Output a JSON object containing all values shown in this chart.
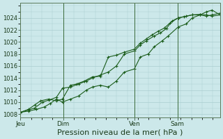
{
  "background_color": "#cce8ea",
  "grid_color": "#aacdd0",
  "line_color": "#1a5c1a",
  "marker_color": "#1a5c1a",
  "xlabel": "Pression niveau de la mer( hPa )",
  "xlabel_fontsize": 8,
  "ylim": [
    1007.5,
    1026.5
  ],
  "yticks": [
    1008,
    1010,
    1012,
    1014,
    1016,
    1018,
    1020,
    1022,
    1024
  ],
  "xtick_labels": [
    "Jeu",
    "Dim",
    "Ven",
    "Sam"
  ],
  "xtick_positions": [
    0.0,
    0.214,
    0.571,
    0.786
  ],
  "vline_positions": [
    0.0,
    0.214,
    0.571,
    0.786
  ],
  "series1_x": [
    0.0,
    0.04,
    0.07,
    0.1,
    0.14,
    0.18,
    0.21,
    0.25,
    0.28,
    0.32,
    0.36,
    0.4,
    0.44,
    0.48,
    0.52,
    0.57,
    0.6,
    0.63,
    0.66,
    0.69,
    0.72,
    0.75,
    0.79,
    0.82,
    0.86,
    0.9,
    0.93,
    0.96,
    1.0
  ],
  "series1_y": [
    1008.3,
    1008.8,
    1009.5,
    1010.2,
    1010.5,
    1010.2,
    1010.5,
    1012.8,
    1013.0,
    1013.5,
    1014.2,
    1014.3,
    1017.5,
    1017.8,
    1018.3,
    1018.8,
    1019.8,
    1020.5,
    1021.2,
    1021.8,
    1022.3,
    1023.2,
    1024.0,
    1024.2,
    1024.5,
    1024.6,
    1024.5,
    1024.3,
    1024.5
  ],
  "series2_x": [
    0.0,
    0.04,
    0.07,
    0.11,
    0.14,
    0.18,
    0.21,
    0.25,
    0.29,
    0.33,
    0.36,
    0.4,
    0.44,
    0.48,
    0.52,
    0.57,
    0.6,
    0.63,
    0.67,
    0.7,
    0.73,
    0.76,
    0.79,
    0.83,
    0.86,
    0.9,
    0.93,
    0.96,
    1.0
  ],
  "series2_y": [
    1008.3,
    1008.7,
    1009.0,
    1010.0,
    1010.3,
    1010.8,
    1012.3,
    1012.5,
    1013.0,
    1013.5,
    1014.0,
    1014.5,
    1015.0,
    1016.0,
    1018.0,
    1018.5,
    1019.5,
    1020.2,
    1021.0,
    1021.5,
    1022.2,
    1023.5,
    1024.0,
    1024.3,
    1024.5,
    1024.5,
    1024.3,
    1024.5,
    1024.8
  ],
  "series3_x": [
    0.0,
    0.04,
    0.08,
    0.12,
    0.15,
    0.18,
    0.21,
    0.25,
    0.29,
    0.33,
    0.36,
    0.4,
    0.44,
    0.48,
    0.52,
    0.57,
    0.6,
    0.64,
    0.67,
    0.71,
    0.74,
    0.79,
    0.83,
    0.86,
    0.9,
    0.93,
    0.96,
    1.0
  ],
  "series3_y": [
    1008.3,
    1008.5,
    1008.8,
    1009.2,
    1009.8,
    1010.5,
    1010.0,
    1010.5,
    1011.0,
    1012.0,
    1012.5,
    1012.8,
    1012.5,
    1013.5,
    1015.0,
    1015.5,
    1017.5,
    1018.0,
    1019.2,
    1020.2,
    1021.0,
    1022.5,
    1023.0,
    1024.0,
    1024.5,
    1025.0,
    1025.3,
    1024.5
  ]
}
